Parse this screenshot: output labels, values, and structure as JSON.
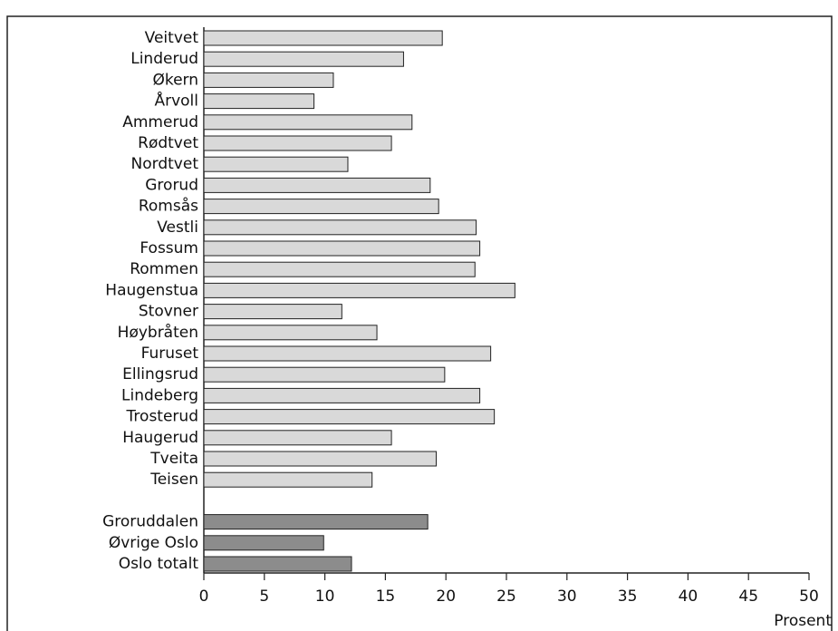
{
  "chart_data": {
    "type": "hbar",
    "categories": [
      "Veitvet",
      "Linderud",
      "Økern",
      "Årvoll",
      "Ammerud",
      "Rødtvet",
      "Nordtvet",
      "Grorud",
      "Romsås",
      "Vestli",
      "Fossum",
      "Rommen",
      "Haugenstua",
      "Stovner",
      "Høybråten",
      "Furuset",
      "Ellingsrud",
      "Lindeberg",
      "Trosterud",
      "Haugerud",
      "Tveita",
      "Teisen",
      null,
      "Groruddalen",
      "Øvrige Oslo",
      "Oslo totalt"
    ],
    "values": [
      19.7,
      16.5,
      10.7,
      9.1,
      17.2,
      15.5,
      11.9,
      18.7,
      19.4,
      22.5,
      22.8,
      22.4,
      25.7,
      11.4,
      14.3,
      23.7,
      19.9,
      22.8,
      24.0,
      15.5,
      19.2,
      13.9,
      null,
      18.5,
      9.9,
      12.2
    ],
    "colors": [
      "#d9d9d9",
      "#d9d9d9",
      "#d9d9d9",
      "#d9d9d9",
      "#d9d9d9",
      "#d9d9d9",
      "#d9d9d9",
      "#d9d9d9",
      "#d9d9d9",
      "#d9d9d9",
      "#d9d9d9",
      "#d9d9d9",
      "#d9d9d9",
      "#d9d9d9",
      "#d9d9d9",
      "#d9d9d9",
      "#d9d9d9",
      "#d9d9d9",
      "#d9d9d9",
      "#d9d9d9",
      "#d9d9d9",
      "#d9d9d9",
      null,
      "#8c8c8c",
      "#8c8c8c",
      "#8c8c8c"
    ],
    "x_label": "Prosent",
    "xlim": [
      0,
      50
    ],
    "xticks": [
      0,
      5,
      10,
      15,
      20,
      25,
      30,
      35,
      40,
      45,
      50
    ]
  }
}
